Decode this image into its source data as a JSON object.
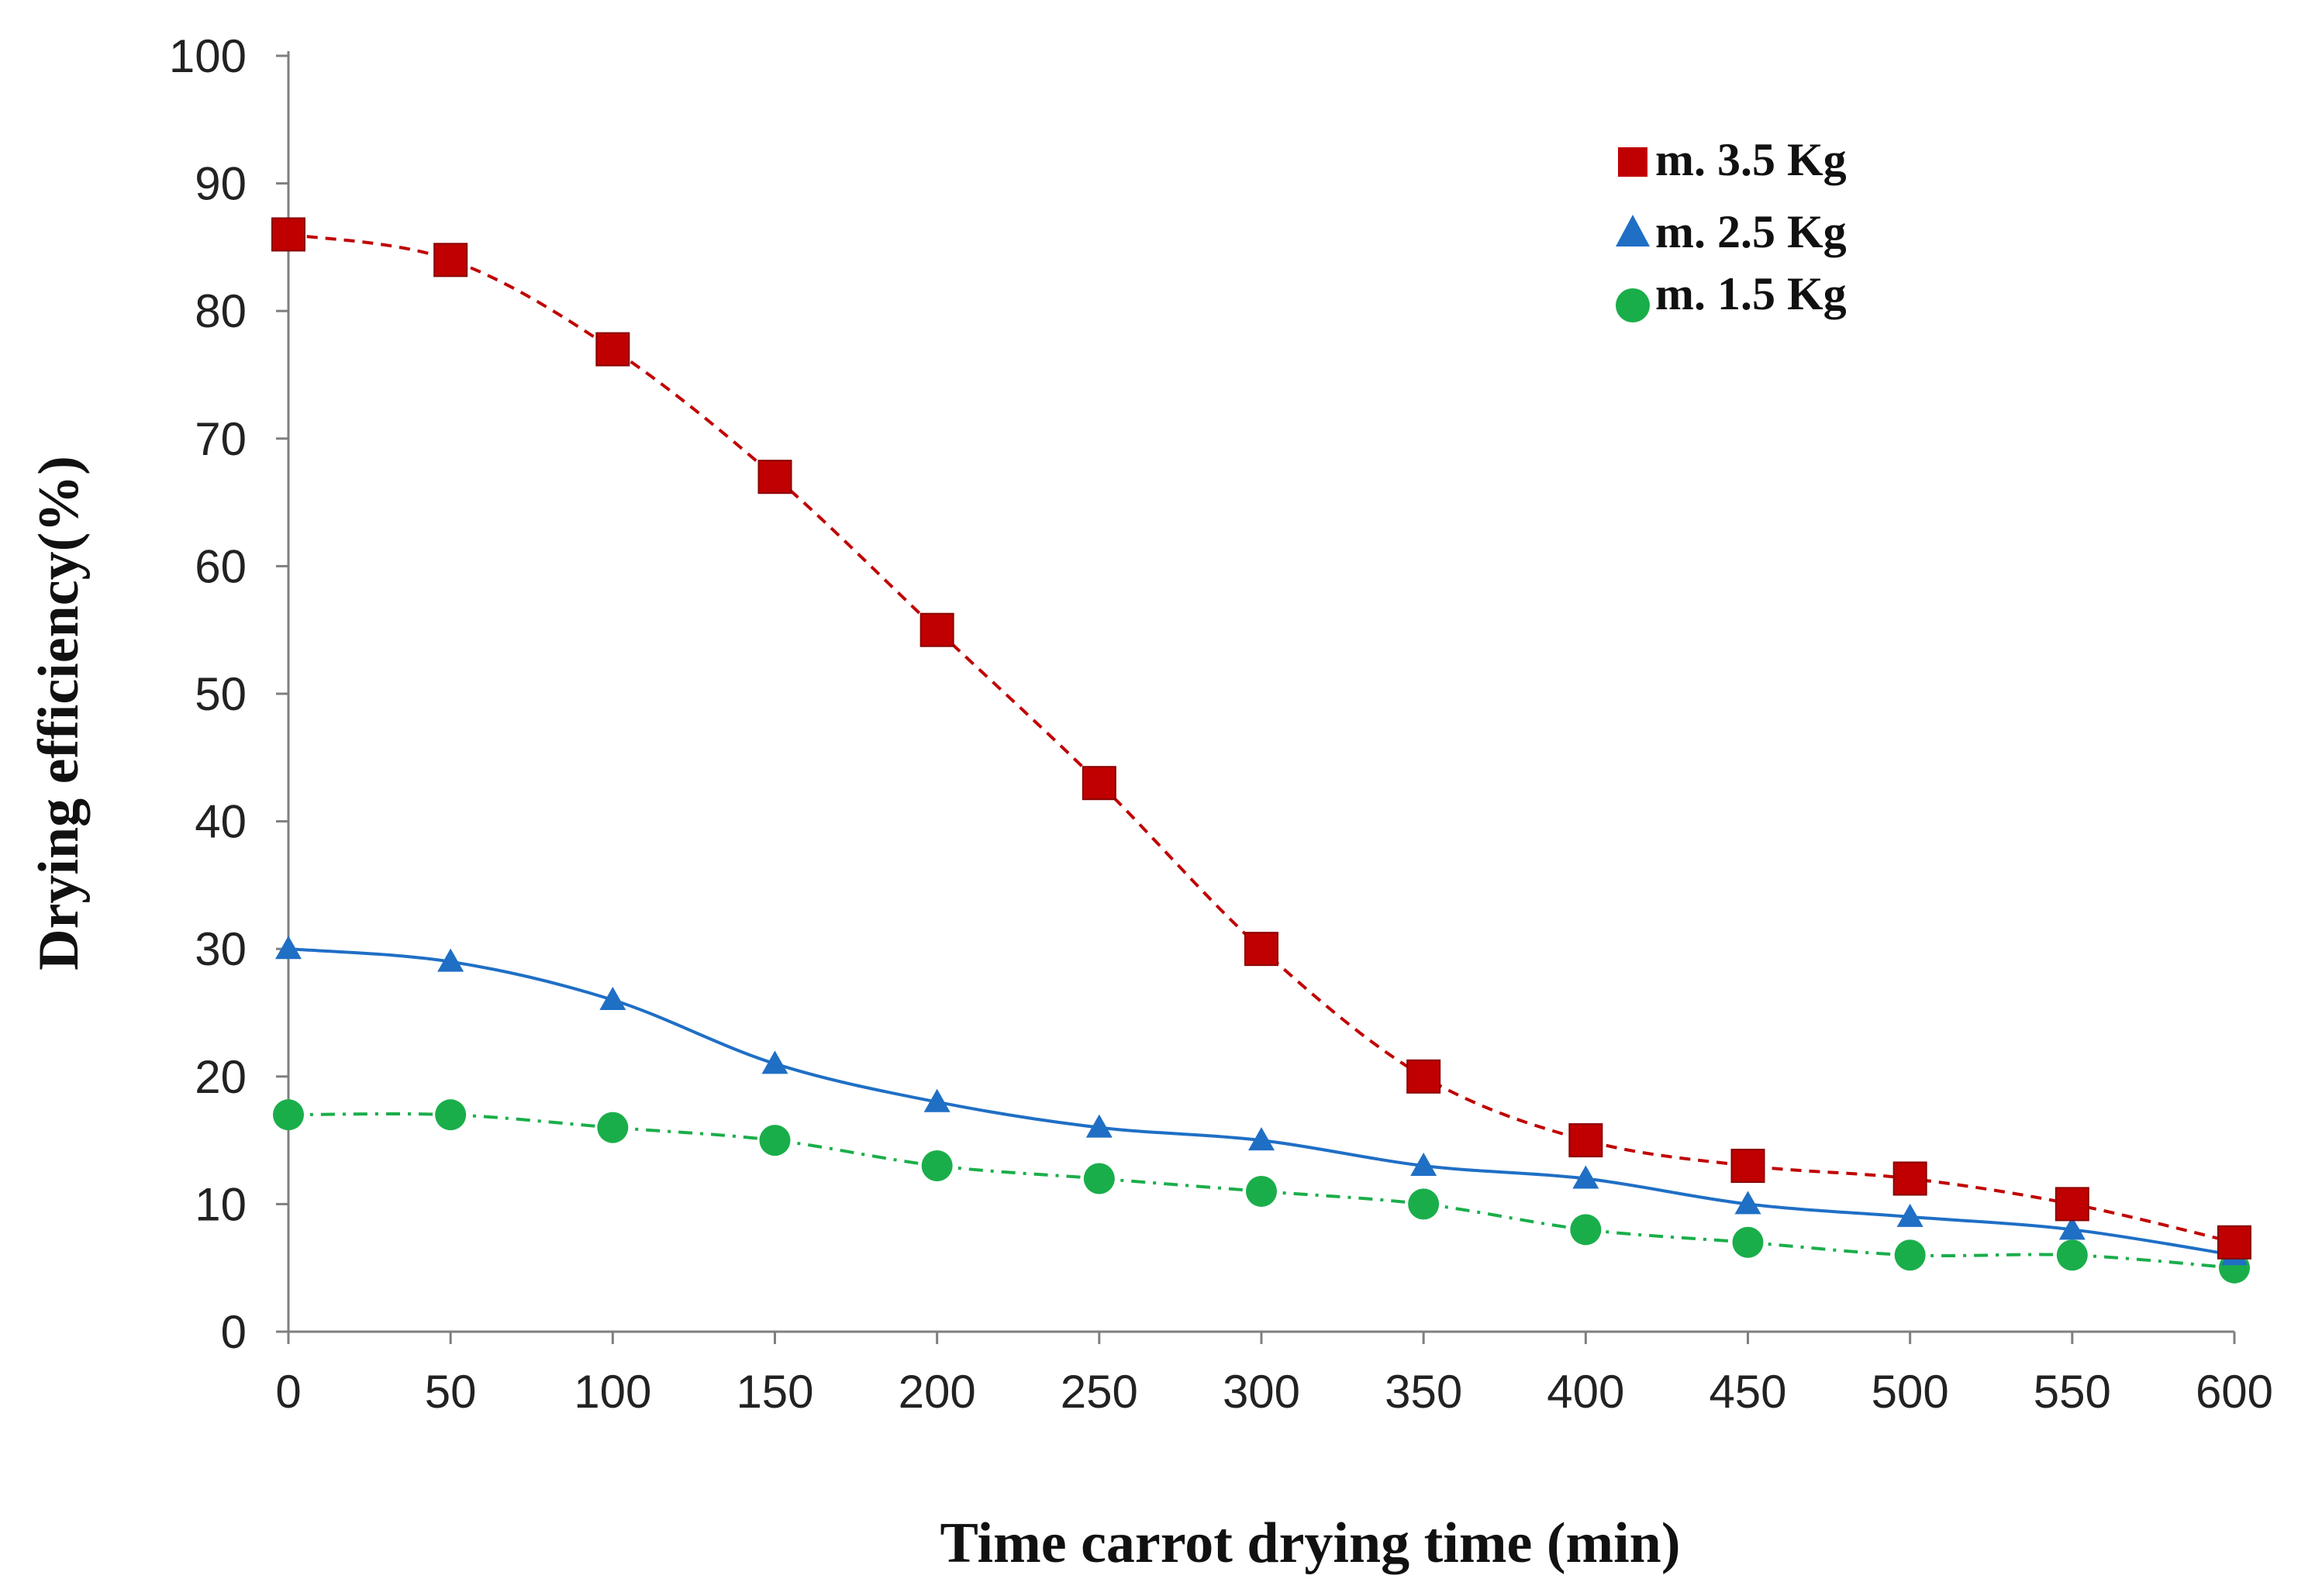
{
  "chart_data": {
    "type": "line",
    "title": "",
    "xlabel": "Time carrot drying time (min)",
    "ylabel": "Drying efficiency(%)",
    "xlim": [
      0,
      600
    ],
    "ylim": [
      0,
      100
    ],
    "x_ticks": [
      0,
      50,
      100,
      150,
      200,
      250,
      300,
      350,
      400,
      450,
      500,
      550,
      600
    ],
    "y_ticks": [
      0,
      10,
      20,
      30,
      40,
      50,
      60,
      70,
      80,
      90,
      100
    ],
    "x_tick_labels": [
      "0",
      "50",
      "100",
      "150",
      "200",
      "250",
      "300",
      "350",
      "400",
      "450",
      "500",
      "550",
      "600"
    ],
    "y_tick_labels": [
      "0",
      "10",
      "20",
      "30",
      "40",
      "50",
      "60",
      "70",
      "80",
      "90",
      "100"
    ],
    "grid": false,
    "legend_position": "top-right",
    "x": [
      0,
      50,
      100,
      150,
      200,
      250,
      300,
      350,
      400,
      450,
      500,
      550,
      600
    ],
    "series": [
      {
        "name": "m. 3.5 Kg",
        "marker": "square",
        "line_style": "dashed",
        "color": "#c00000",
        "values": [
          86,
          84,
          77,
          67,
          55,
          43,
          30,
          20,
          15,
          13,
          12,
          10,
          7
        ]
      },
      {
        "name": "m. 2.5 Kg",
        "marker": "triangle",
        "line_style": "solid",
        "color": "#1f6fc5",
        "values": [
          30,
          29,
          26,
          21,
          18,
          16,
          15,
          13,
          12,
          10,
          9,
          8,
          6
        ]
      },
      {
        "name": "m. 1.5 Kg",
        "marker": "circle",
        "line_style": "dash-dot",
        "color": "#1aae4a",
        "values": [
          17,
          17,
          16,
          15,
          13,
          12,
          11,
          10,
          8,
          7,
          6,
          6,
          5
        ]
      }
    ]
  }
}
